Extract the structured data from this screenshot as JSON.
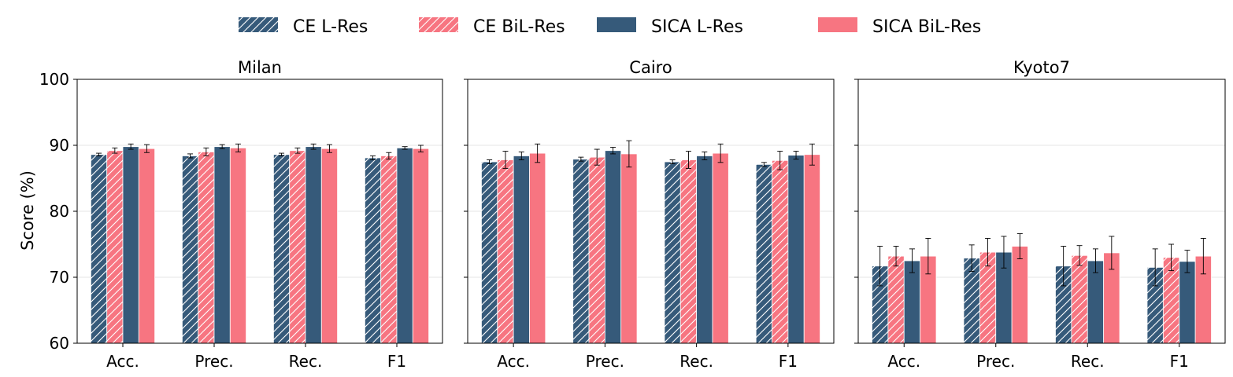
{
  "chart_data": {
    "type": "bar",
    "ylabel": "Score (%)",
    "ylim": [
      60,
      100
    ],
    "yticks": [
      "60",
      "70",
      "80",
      "90",
      "100"
    ],
    "categories": [
      "Acc.",
      "Prec.",
      "Rec.",
      "F1"
    ],
    "colors": {
      "l_res": "#365a7a",
      "bil_res": "#f77581"
    },
    "legend": [
      {
        "name": "CE L-Res",
        "color": "#365a7a",
        "hatched": true
      },
      {
        "name": "CE BiL-Res",
        "color": "#f77581",
        "hatched": true
      },
      {
        "name": "SICA L-Res",
        "color": "#365a7a",
        "hatched": false
      },
      {
        "name": "SICA BiL-Res",
        "color": "#f77581",
        "hatched": false
      }
    ],
    "panels": [
      {
        "title": "Milan",
        "series": [
          {
            "name": "CE L-Res",
            "values": [
              88.6,
              88.4,
              88.6,
              88.1
            ],
            "errors": [
              0.2,
              0.3,
              0.2,
              0.3
            ]
          },
          {
            "name": "CE BiL-Res",
            "values": [
              89.2,
              89.0,
              89.2,
              88.4
            ],
            "errors": [
              0.4,
              0.6,
              0.4,
              0.5
            ]
          },
          {
            "name": "SICA L-Res",
            "values": [
              89.8,
              89.8,
              89.8,
              89.6
            ],
            "errors": [
              0.4,
              0.3,
              0.4,
              0.2
            ]
          },
          {
            "name": "SICA BiL-Res",
            "values": [
              89.5,
              89.6,
              89.5,
              89.5
            ],
            "errors": [
              0.6,
              0.6,
              0.6,
              0.5
            ]
          }
        ]
      },
      {
        "title": "Cairo",
        "series": [
          {
            "name": "CE L-Res",
            "values": [
              87.5,
              87.9,
              87.5,
              87.1
            ],
            "errors": [
              0.3,
              0.3,
              0.3,
              0.3
            ]
          },
          {
            "name": "CE BiL-Res",
            "values": [
              87.8,
              88.2,
              87.8,
              87.7
            ],
            "errors": [
              1.3,
              1.2,
              1.3,
              1.4
            ]
          },
          {
            "name": "SICA L-Res",
            "values": [
              88.4,
              89.2,
              88.4,
              88.5
            ],
            "errors": [
              0.6,
              0.5,
              0.6,
              0.6
            ]
          },
          {
            "name": "SICA BiL-Res",
            "values": [
              88.8,
              88.7,
              88.8,
              88.6
            ],
            "errors": [
              1.4,
              2.0,
              1.4,
              1.6
            ]
          }
        ]
      },
      {
        "title": "Kyoto7",
        "series": [
          {
            "name": "CE L-Res",
            "values": [
              71.7,
              72.9,
              71.7,
              71.5
            ],
            "errors": [
              3.0,
              2.0,
              3.0,
              2.8
            ]
          },
          {
            "name": "CE BiL-Res",
            "values": [
              73.2,
              73.8,
              73.3,
              73.0
            ],
            "errors": [
              1.5,
              2.1,
              1.5,
              2.0
            ]
          },
          {
            "name": "SICA L-Res",
            "values": [
              72.5,
              73.8,
              72.5,
              72.4
            ],
            "errors": [
              1.8,
              2.4,
              1.8,
              1.7
            ]
          },
          {
            "name": "SICA BiL-Res",
            "values": [
              73.2,
              74.7,
              73.7,
              73.2
            ],
            "errors": [
              2.7,
              1.9,
              2.5,
              2.7
            ]
          }
        ]
      }
    ]
  }
}
